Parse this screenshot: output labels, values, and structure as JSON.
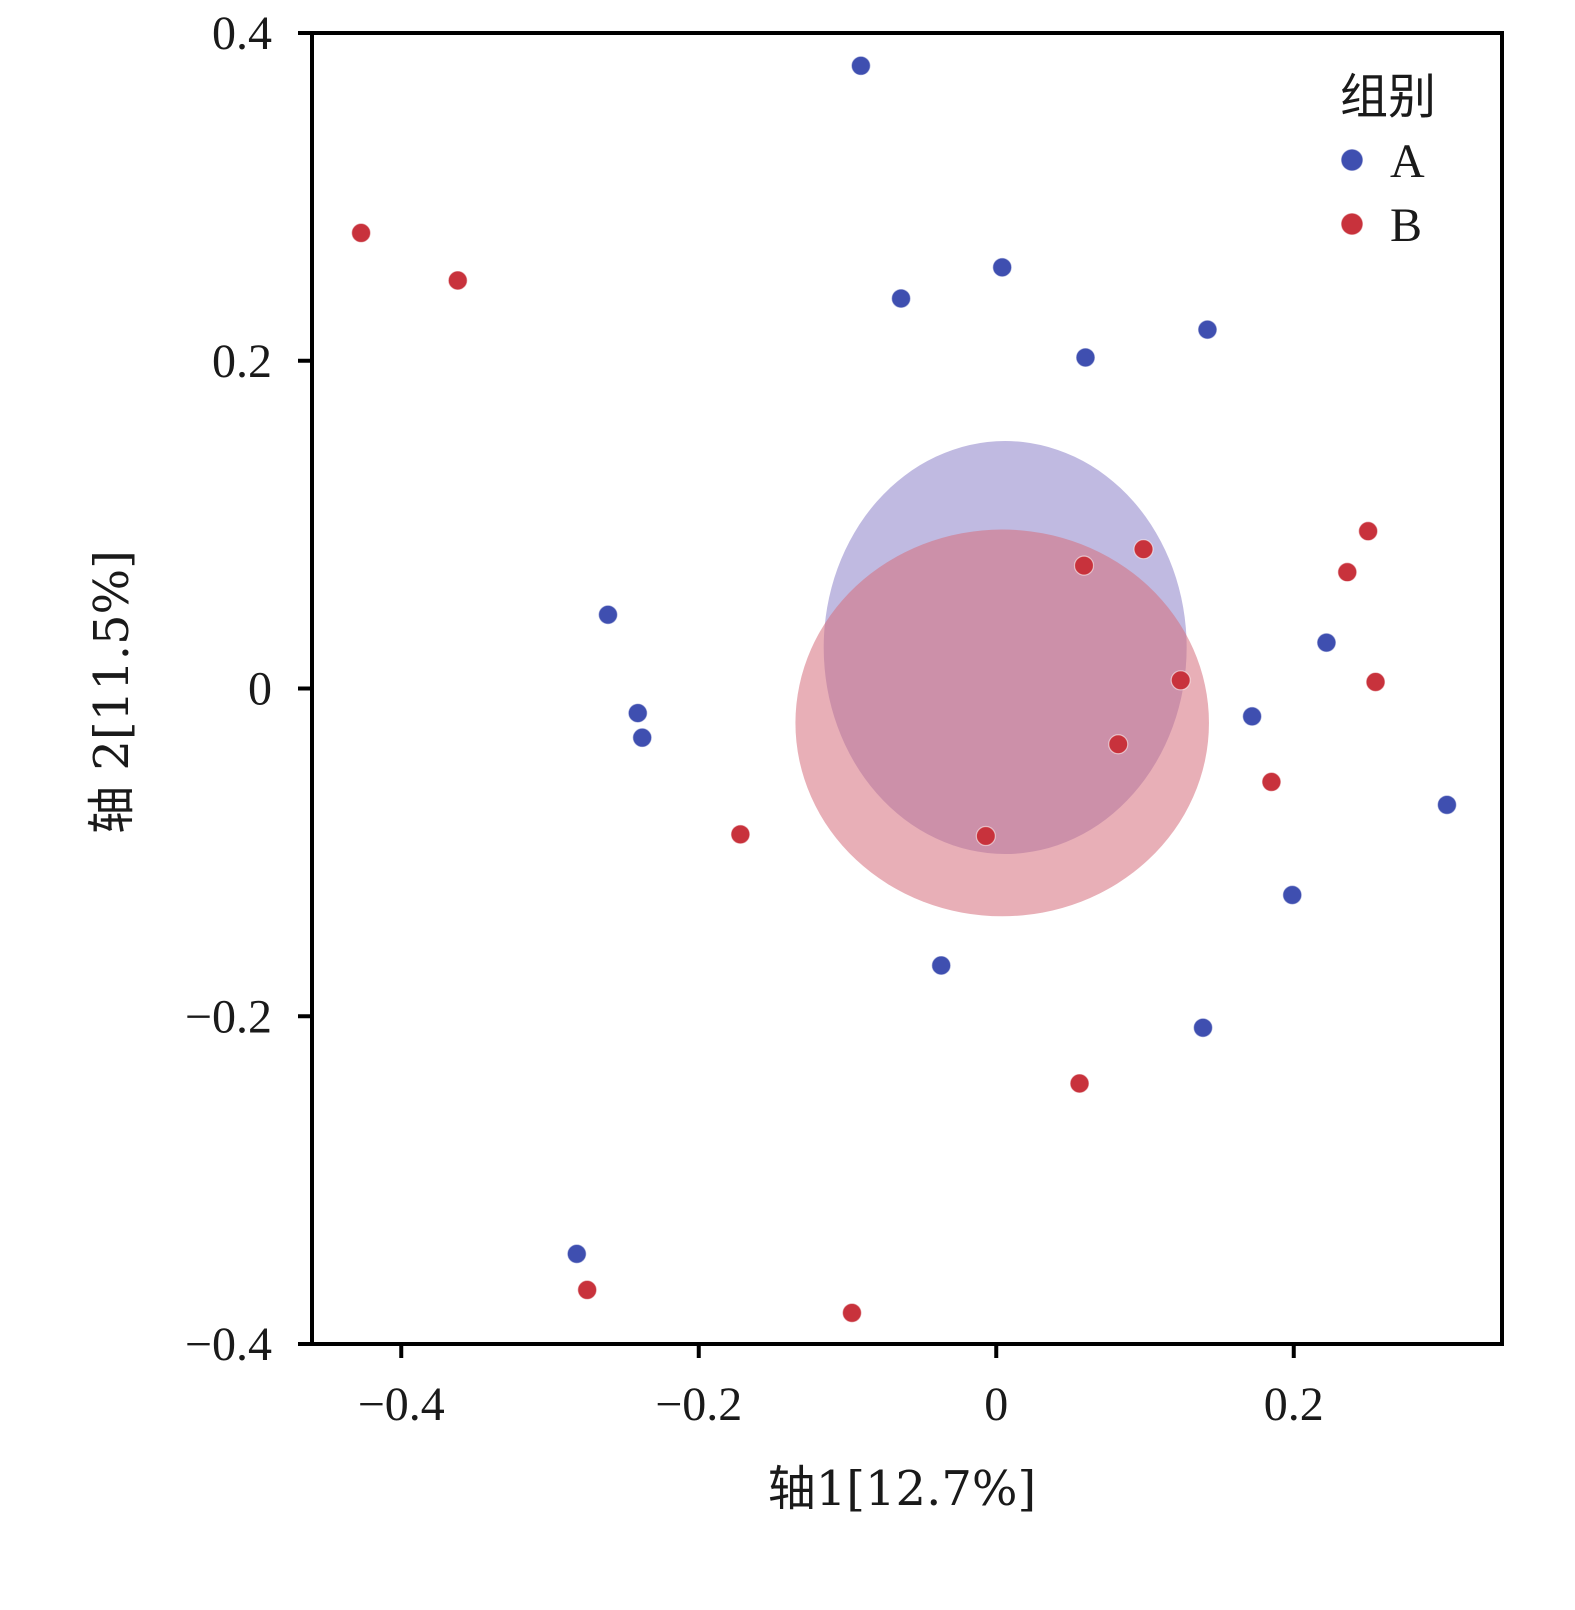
{
  "chart_data": {
    "type": "scatter",
    "title": "",
    "xlabel": "轴1[12.7%]",
    "ylabel": "轴 2[11.5%]",
    "xlim": [
      -0.46,
      0.34
    ],
    "ylim": [
      -0.4,
      0.4
    ],
    "xticks": [
      -0.4,
      -0.2,
      0,
      0.2
    ],
    "xtick_labels": [
      "−0.4",
      "−0.2",
      "0",
      "0.2"
    ],
    "yticks": [
      -0.4,
      -0.2,
      0,
      0.2,
      0.4
    ],
    "ytick_labels": [
      "−0.4",
      "−0.2",
      "0",
      "0.2",
      "0.4"
    ],
    "grid": false,
    "legend": {
      "title": "组别",
      "position": "top-right"
    },
    "series": [
      {
        "name": "A",
        "color": "#3f4fb0",
        "points": [
          [
            -0.091,
            0.38
          ],
          [
            0.004,
            0.257
          ],
          [
            -0.064,
            0.238
          ],
          [
            0.142,
            0.219
          ],
          [
            0.06,
            0.202
          ],
          [
            -0.261,
            0.045
          ],
          [
            0.222,
            0.028
          ],
          [
            -0.241,
            -0.015
          ],
          [
            0.172,
            -0.017
          ],
          [
            -0.238,
            -0.03
          ],
          [
            0.303,
            -0.071
          ],
          [
            0.199,
            -0.126
          ],
          [
            -0.037,
            -0.169
          ],
          [
            0.139,
            -0.207
          ],
          [
            -0.282,
            -0.345
          ]
        ],
        "ellipse": {
          "center": [
            0.006,
            0.025
          ],
          "radii": [
            0.122,
            0.126
          ]
        }
      },
      {
        "name": "B",
        "color": "#c8323c",
        "points": [
          [
            -0.427,
            0.278
          ],
          [
            -0.362,
            0.249
          ],
          [
            0.25,
            0.096
          ],
          [
            0.099,
            0.085
          ],
          [
            0.059,
            0.075
          ],
          [
            0.236,
            0.071
          ],
          [
            0.124,
            0.005
          ],
          [
            0.255,
            0.004
          ],
          [
            0.082,
            -0.034
          ],
          [
            0.185,
            -0.057
          ],
          [
            -0.172,
            -0.089
          ],
          [
            -0.007,
            -0.09
          ],
          [
            0.056,
            -0.241
          ],
          [
            -0.275,
            -0.367
          ],
          [
            -0.097,
            -0.381
          ]
        ],
        "ellipse": {
          "center": [
            0.004,
            -0.021
          ],
          "radii": [
            0.139,
            0.118
          ]
        }
      }
    ]
  }
}
